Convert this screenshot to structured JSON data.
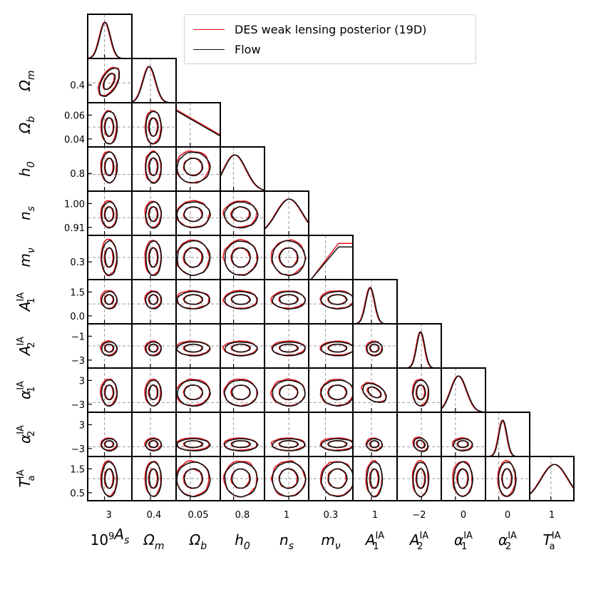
{
  "chart_data": {
    "type": "corner",
    "parameters": [
      {
        "key": "As",
        "label": "10^9 A_s",
        "ticks": [
          "3"
        ]
      },
      {
        "key": "Om",
        "label": "Ω_m",
        "ticks": [
          "0.4"
        ]
      },
      {
        "key": "Ob",
        "label": "Ω_b",
        "ticks": [
          "0.06",
          "0.04"
        ],
        "xticks": [
          "0.05"
        ]
      },
      {
        "key": "h0",
        "label": "h_0",
        "ticks": [
          "0.8"
        ]
      },
      {
        "key": "ns",
        "label": "n_s",
        "ticks": [
          "1.00",
          "0.91"
        ],
        "xticks": [
          "1"
        ]
      },
      {
        "key": "mnu",
        "label": "m_ν",
        "ticks": [
          "0.3"
        ]
      },
      {
        "key": "A1",
        "label": "A_1^IA",
        "ticks": [
          "1.5",
          "0.0"
        ],
        "xticks": [
          "1"
        ]
      },
      {
        "key": "A2",
        "label": "A_2^IA",
        "ticks": [
          "−1",
          "−3"
        ],
        "xticks": [
          "−2"
        ]
      },
      {
        "key": "al1",
        "label": "α_1^IA",
        "ticks": [
          "3",
          "−3"
        ],
        "xticks": [
          "0"
        ]
      },
      {
        "key": "al2",
        "label": "α_2^IA",
        "ticks": [
          "3",
          "−3"
        ],
        "xticks": [
          "0"
        ]
      },
      {
        "key": "Ta",
        "label": "T_a^IA",
        "ticks": [
          "1.5",
          "0.5"
        ],
        "xticks": [
          "1"
        ]
      }
    ],
    "x_tick_labels": [
      "3",
      "0.4",
      "0.05",
      "0.8",
      "1",
      "0.3",
      "1",
      "−2",
      "0",
      "0",
      "1"
    ],
    "series": [
      {
        "name": "DES weak lensing posterior (19D)",
        "color": "#e8141c"
      },
      {
        "name": "Flow",
        "color": "#111111"
      }
    ],
    "legend_position": "top-right",
    "contour_levels": 2,
    "reference_lines": "dashed grey",
    "grid": false
  }
}
